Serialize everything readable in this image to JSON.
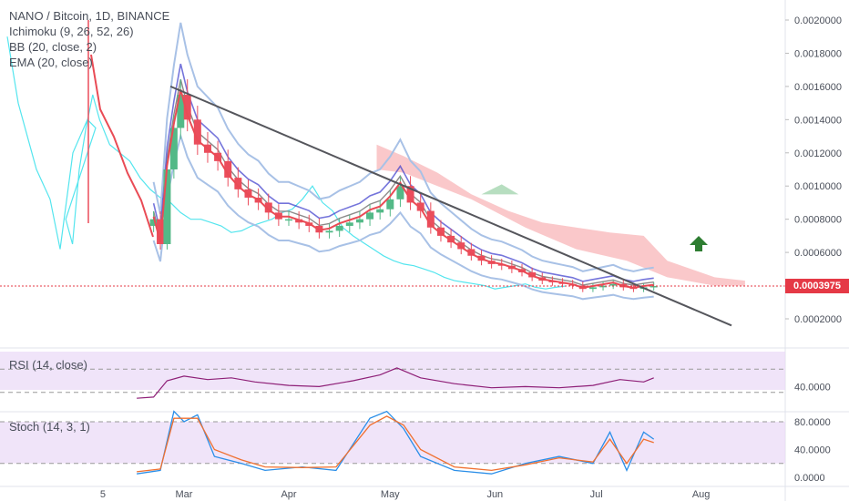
{
  "header": {
    "title": "NANO / Bitcoin, 1D, BINANCE",
    "indicators": [
      "Ichimoku (9, 26, 52, 26)",
      "BB (20, close, 2)",
      "EMA (20, close)"
    ]
  },
  "last_price": "0.0003975",
  "colors": {
    "up": "#53b987",
    "down": "#eb4d5c",
    "ema": "#e94b55",
    "bb": "#a8c1e6",
    "kumo": "#f8b6b8",
    "trendline": "#55565c",
    "conversion": "#3b3bcc",
    "lagging": "#54e5ee",
    "rsi": "#8e1f77",
    "stoch_k": "#2a8ee8",
    "stoch_d": "#f07030",
    "pane_bg": "#ead8f6",
    "price_line": "#e53946",
    "arrow": "#2e7d32"
  },
  "chart_data": [
    {
      "type": "line",
      "subtype": "candlestick-with-overlays",
      "title": "NANO / Bitcoin, 1D, BINANCE",
      "x_ticks": [
        "5",
        "Mar",
        "Apr",
        "May",
        "Jun",
        "Jul",
        "Aug"
      ],
      "y_ticks": [
        "0.0020000",
        "0.0018000",
        "0.0016000",
        "0.0014000",
        "0.0012000",
        "0.0010000",
        "0.0008000",
        "0.0006000",
        "0.0002000"
      ],
      "ylim": [
        5e-05,
        0.0021
      ],
      "trendline": {
        "from": [
          "Feb 25",
          0.0016
        ],
        "to": [
          "Aug 10",
          0.00016
        ]
      },
      "close_series": [
        [
          "Feb 20",
          0.0008
        ],
        [
          "Feb 22",
          0.00065
        ],
        [
          "Feb 24",
          0.0011
        ],
        [
          "Feb 26",
          0.00135
        ],
        [
          "Feb 28",
          0.00155
        ],
        [
          "Mar 2",
          0.0014
        ],
        [
          "Mar 5",
          0.00125
        ],
        [
          "Mar 8",
          0.0012
        ],
        [
          "Mar 11",
          0.00115
        ],
        [
          "Mar 14",
          0.00105
        ],
        [
          "Mar 17",
          0.00098
        ],
        [
          "Mar 20",
          0.00093
        ],
        [
          "Mar 23",
          0.0009
        ],
        [
          "Mar 26",
          0.00084
        ],
        [
          "Mar 29",
          0.0008
        ],
        [
          "Apr 1",
          0.0008
        ],
        [
          "Apr 4",
          0.00078
        ],
        [
          "Apr 7",
          0.00076
        ],
        [
          "Apr 10",
          0.00072
        ],
        [
          "Apr 13",
          0.00073
        ],
        [
          "Apr 16",
          0.00076
        ],
        [
          "Apr 19",
          0.00078
        ],
        [
          "Apr 22",
          0.0008
        ],
        [
          "Apr 25",
          0.00084
        ],
        [
          "Apr 28",
          0.00086
        ],
        [
          "May 1",
          0.00092
        ],
        [
          "May 4",
          0.001
        ],
        [
          "May 7",
          0.0009
        ],
        [
          "May 10",
          0.00085
        ],
        [
          "May 13",
          0.00075
        ],
        [
          "May 16",
          0.0007
        ],
        [
          "May 19",
          0.00066
        ],
        [
          "May 22",
          0.00062
        ],
        [
          "May 25",
          0.00058
        ],
        [
          "May 28",
          0.00055
        ],
        [
          "May 31",
          0.00053
        ],
        [
          "Jun 3",
          0.00052
        ],
        [
          "Jun 6",
          0.0005
        ],
        [
          "Jun 9",
          0.00048
        ],
        [
          "Jun 12",
          0.00045
        ],
        [
          "Jun 15",
          0.00043
        ],
        [
          "Jun 18",
          0.00042
        ],
        [
          "Jun 21",
          0.00041
        ],
        [
          "Jun 24",
          0.0004
        ],
        [
          "Jun 27",
          0.00038
        ],
        [
          "Jun 30",
          0.00039
        ],
        [
          "Jul 3",
          0.0004
        ],
        [
          "Jul 6",
          0.00041
        ],
        [
          "Jul 9",
          0.00039
        ],
        [
          "Jul 12",
          0.00038
        ],
        [
          "Jul 15",
          0.00039
        ],
        [
          "Jul 18",
          0.0003975
        ]
      ]
    },
    {
      "type": "line",
      "title": "RSI (14, close)",
      "y_ticks": [
        "40.0000"
      ],
      "bands": [
        30,
        70
      ],
      "values": [
        [
          "Feb 15",
          20
        ],
        [
          "Feb 20",
          22
        ],
        [
          "Feb 24",
          50
        ],
        [
          "Mar 1",
          58
        ],
        [
          "Mar 8",
          52
        ],
        [
          "Mar 15",
          55
        ],
        [
          "Mar 22",
          48
        ],
        [
          "Apr 1",
          42
        ],
        [
          "Apr 10",
          40
        ],
        [
          "Apr 20",
          50
        ],
        [
          "Apr 28",
          60
        ],
        [
          "May 3",
          72
        ],
        [
          "May 10",
          55
        ],
        [
          "May 20",
          45
        ],
        [
          "May 31",
          38
        ],
        [
          "Jun 10",
          40
        ],
        [
          "Jun 20",
          38
        ],
        [
          "Jun 30",
          42
        ],
        [
          "Jul 8",
          52
        ],
        [
          "Jul 15",
          48
        ],
        [
          "Jul 18",
          55
        ]
      ]
    },
    {
      "type": "line",
      "title": "Stoch (14, 3, 1)",
      "y_ticks": [
        "80.0000",
        "40.0000",
        "0.0000"
      ],
      "bands": [
        20,
        80
      ],
      "series": [
        {
          "values": [
            [
              "Feb 15",
              5
            ],
            [
              "Feb 22",
              10
            ],
            [
              "Feb 26",
              95
            ],
            [
              "Mar 1",
              80
            ],
            [
              "Mar 5",
              90
            ],
            [
              "Mar 10",
              30
            ],
            [
              "Mar 18",
              20
            ],
            [
              "Mar 25",
              10
            ],
            [
              "Apr 5",
              15
            ],
            [
              "Apr 15",
              10
            ],
            [
              "Apr 25",
              85
            ],
            [
              "Apr 30",
              95
            ],
            [
              "May 5",
              70
            ],
            [
              "May 10",
              30
            ],
            [
              "May 20",
              10
            ],
            [
              "May 31",
              5
            ],
            [
              "Jun 10",
              20
            ],
            [
              "Jun 20",
              30
            ],
            [
              "Jun 30",
              20
            ],
            [
              "Jul 5",
              65
            ],
            [
              "Jul 10",
              10
            ],
            [
              "Jul 15",
              65
            ],
            [
              "Jul 18",
              55
            ]
          ]
        },
        {
          "values": [
            [
              "Feb 15",
              8
            ],
            [
              "Feb 22",
              12
            ],
            [
              "Feb 26",
              85
            ],
            [
              "Mar 1",
              85
            ],
            [
              "Mar 5",
              85
            ],
            [
              "Mar 10",
              40
            ],
            [
              "Mar 18",
              25
            ],
            [
              "Mar 25",
              15
            ],
            [
              "Apr 5",
              14
            ],
            [
              "Apr 15",
              15
            ],
            [
              "Apr 25",
              75
            ],
            [
              "Apr 30",
              88
            ],
            [
              "May 5",
              75
            ],
            [
              "May 10",
              40
            ],
            [
              "May 20",
              15
            ],
            [
              "May 31",
              10
            ],
            [
              "Jun 10",
              18
            ],
            [
              "Jun 20",
              28
            ],
            [
              "Jun 30",
              22
            ],
            [
              "Jul 5",
              55
            ],
            [
              "Jul 10",
              20
            ],
            [
              "Jul 15",
              55
            ],
            [
              "Jul 18",
              50
            ]
          ]
        }
      ]
    }
  ]
}
